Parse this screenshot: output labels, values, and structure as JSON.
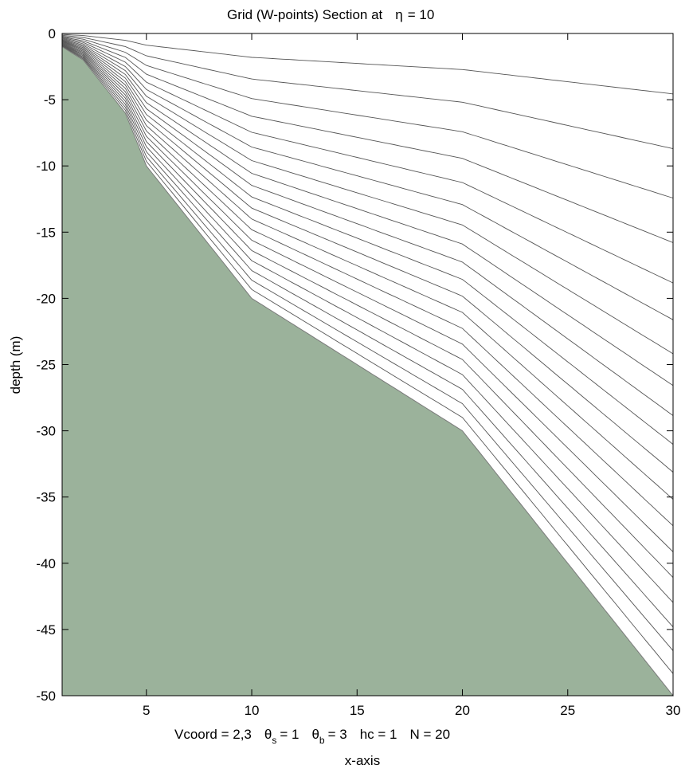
{
  "chart_data": {
    "type": "area",
    "title": "Grid (W-points) Section at",
    "title_symbol": "η",
    "title_value": "= 10",
    "xlabel": "x-axis",
    "ylabel": "depth  (m)",
    "subtitle": {
      "vcoord": "Vcoord = 2,3",
      "theta_s_sym": "θ",
      "theta_s_sub": "s",
      "theta_s_val": "= 1",
      "theta_b_sym": "θ",
      "theta_b_sub": "b",
      "theta_b_val": "= 3",
      "hc": "hc  = 1",
      "n": "N = 20"
    },
    "xlim": [
      1,
      30
    ],
    "ylim": [
      -50,
      0
    ],
    "xticks": [
      5,
      10,
      15,
      20,
      25,
      30
    ],
    "yticks": [
      0,
      -5,
      -10,
      -15,
      -20,
      -25,
      -30,
      -35,
      -40,
      -45,
      -50
    ],
    "grid": false,
    "bathymetry": {
      "x": [
        1,
        2,
        4,
        5,
        10,
        20,
        30
      ],
      "depth": [
        1,
        2,
        6,
        10,
        20,
        30,
        50
      ]
    },
    "vcoord_params": {
      "theta_s": 1,
      "theta_b": 3,
      "hc": 1,
      "N": 20
    },
    "colors": {
      "land": "#9bb29b",
      "lines": "#555555",
      "axes": "#000000"
    }
  }
}
